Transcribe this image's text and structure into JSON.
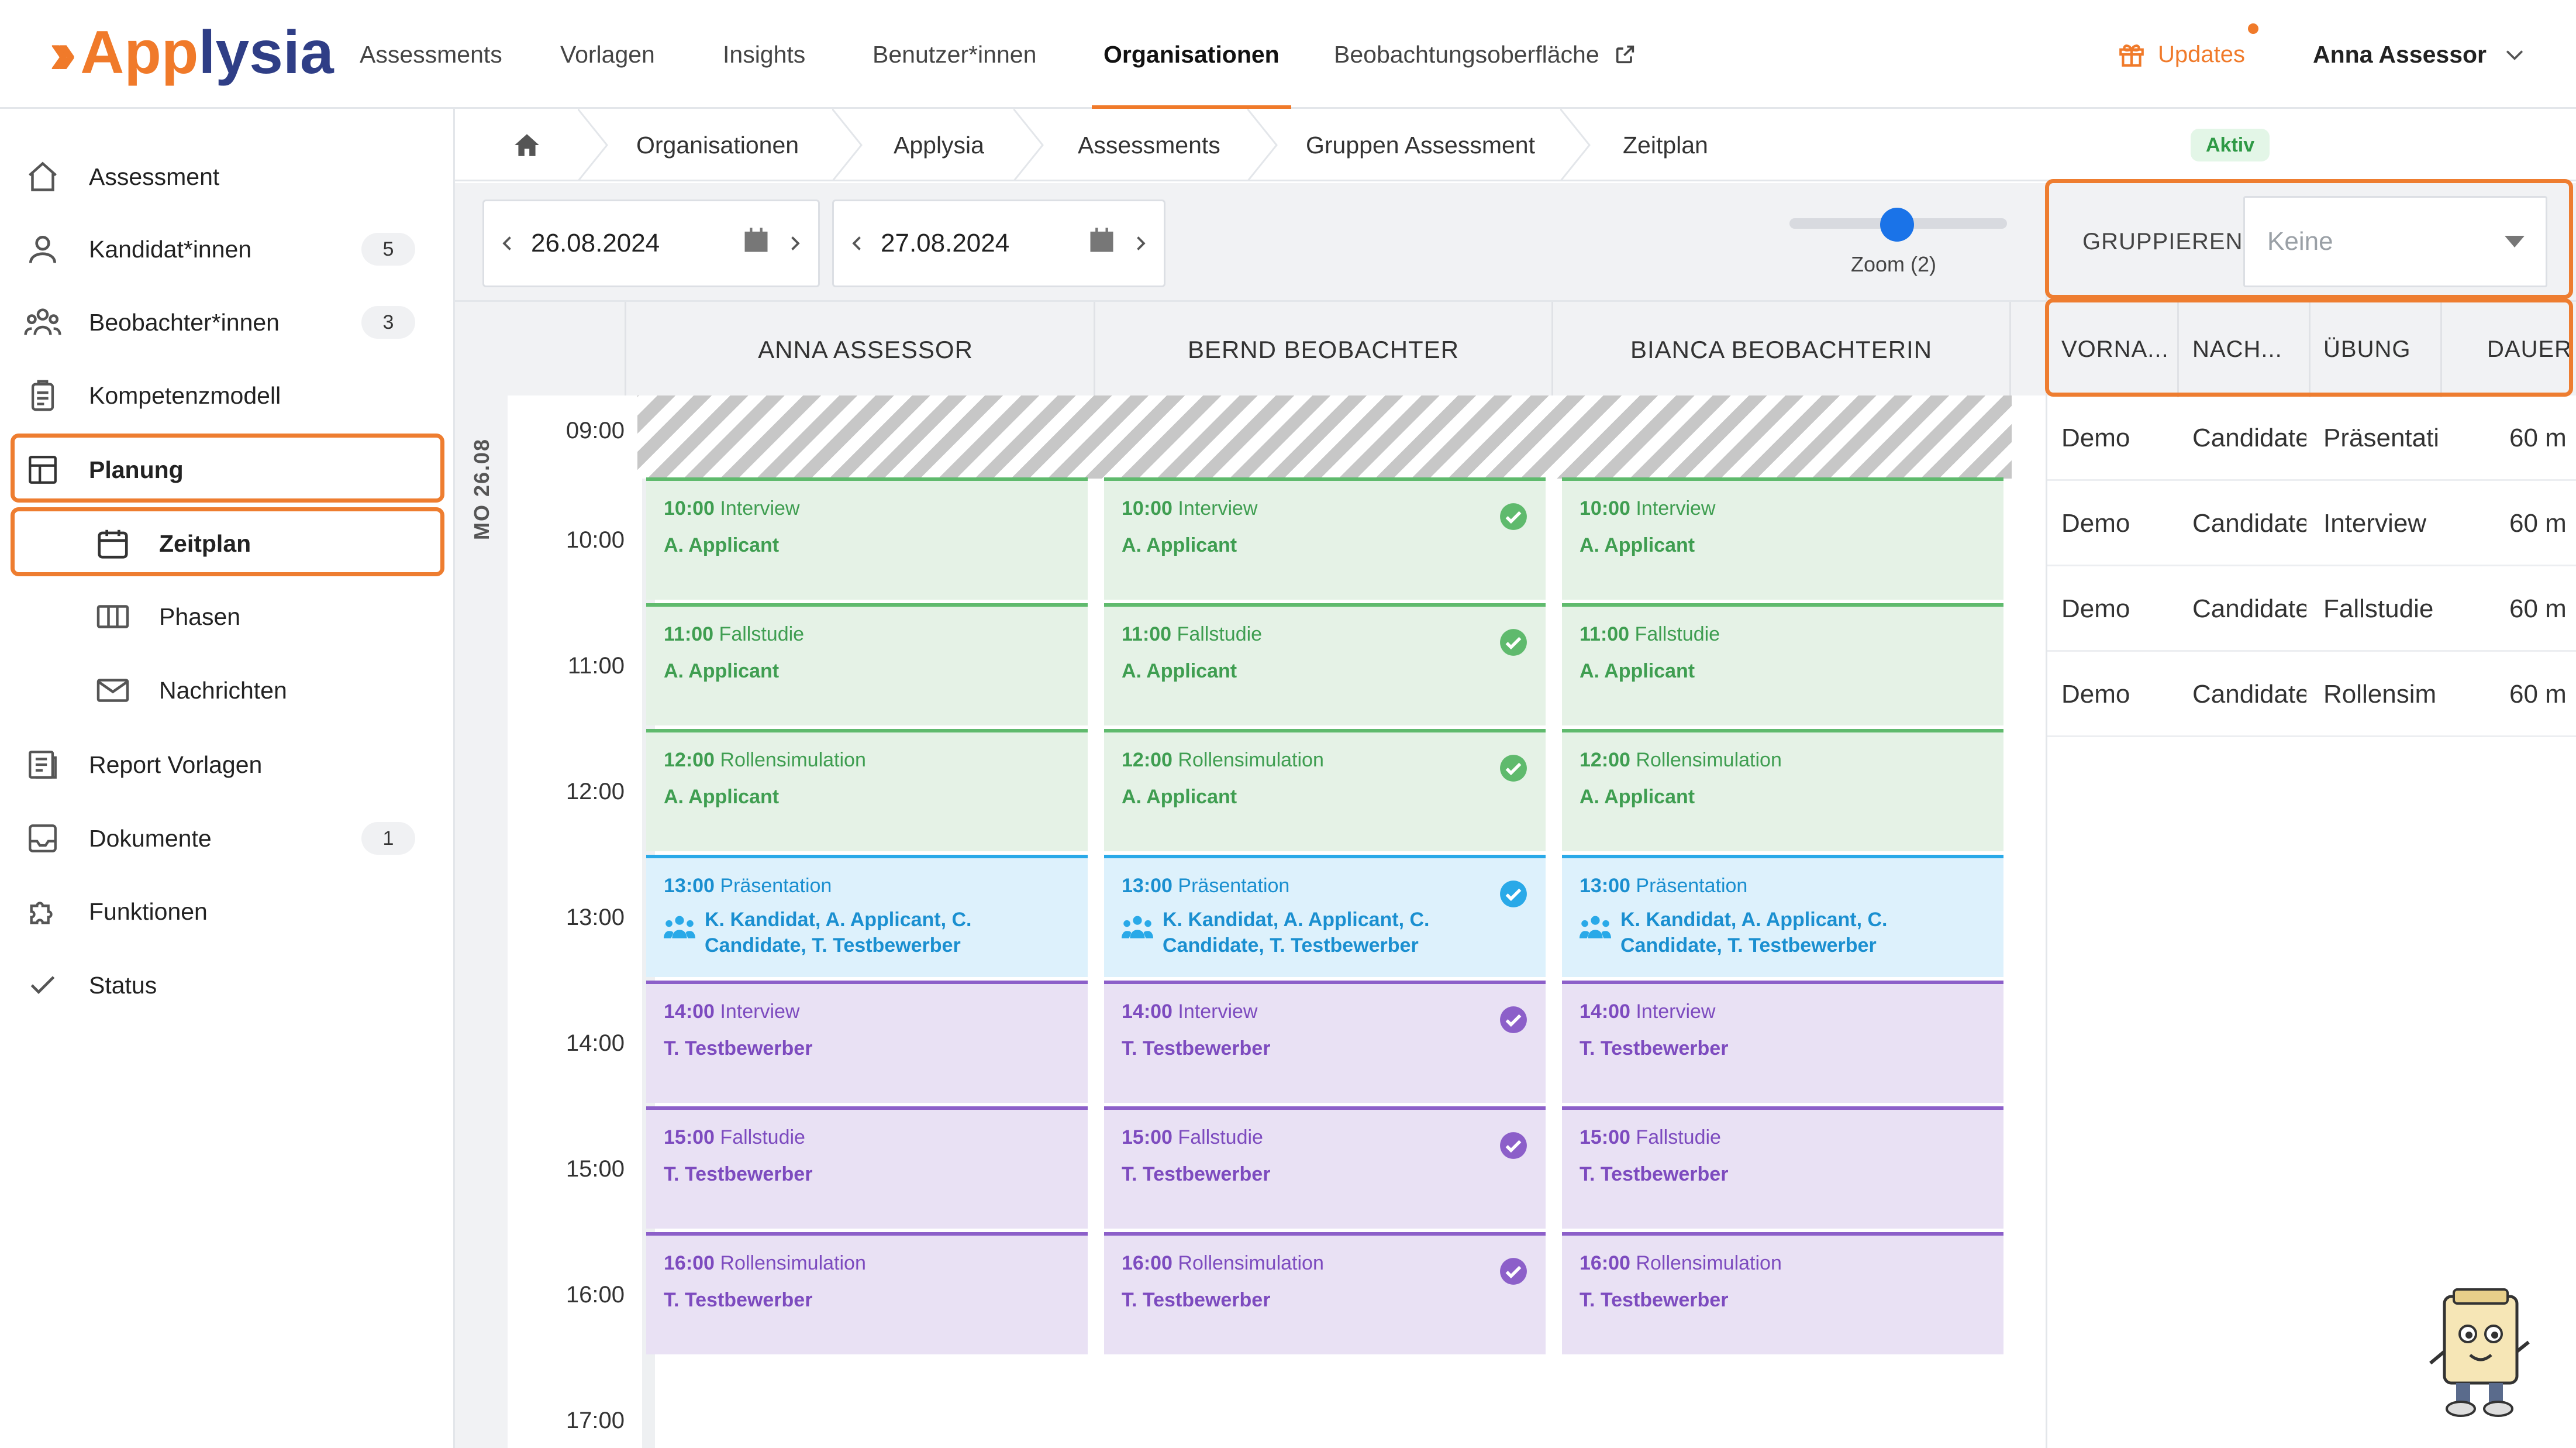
{
  "brand": {
    "logo_text_1": "App",
    "logo_text_2": "lysia",
    "orange": "#f07a2a",
    "navy": "#2f3e86"
  },
  "topnav": {
    "items": [
      "Assessments",
      "Vorlagen",
      "Insights",
      "Benutzer*innen",
      "Organisationen",
      "Beobachtungsoberfläche"
    ],
    "active": "Organisationen",
    "updates_label": "Updates",
    "user_name": "Anna Assessor"
  },
  "sidebar": {
    "items": [
      {
        "label": "Assessment",
        "icon": "home-icon"
      },
      {
        "label": "Kandidat*innen",
        "badge": "5",
        "icon": "users-icon"
      },
      {
        "label": "Beobachter*innen",
        "badge": "3",
        "icon": "observers-icon"
      },
      {
        "label": "Kompetenzmodell",
        "icon": "clipboard-icon"
      },
      {
        "label": "Planung",
        "icon": "layout-icon"
      },
      {
        "label": "Zeitplan",
        "icon": "calendar-icon"
      },
      {
        "label": "Phasen",
        "icon": "columns-icon"
      },
      {
        "label": "Nachrichten",
        "icon": "mail-icon"
      },
      {
        "label": "Report Vorlagen",
        "icon": "report-icon"
      },
      {
        "label": "Dokumente",
        "badge": "1",
        "icon": "inbox-icon"
      },
      {
        "label": "Funktionen",
        "icon": "puzzle-icon"
      },
      {
        "label": "Status",
        "icon": "check-icon"
      }
    ]
  },
  "breadcrumb": {
    "items": [
      "Organisationen",
      "Applysia",
      "Assessments",
      "Gruppen Assessment",
      "Zeitplan"
    ],
    "status": "Aktiv"
  },
  "toolbar": {
    "date_from": "26.08.2024",
    "date_to": "27.08.2024",
    "zoom_label": "Zoom (2)"
  },
  "calendar": {
    "day_label": "MO 26.08",
    "times": [
      "09:00",
      "10:00",
      "11:00",
      "12:00",
      "13:00",
      "14:00",
      "15:00",
      "16:00",
      "17:00"
    ],
    "columns": [
      {
        "name": "ANNA ASSESSOR",
        "events": [
          {
            "time": "10:00",
            "title": "Interview",
            "who": "A. Applicant",
            "check": false
          },
          {
            "time": "11:00",
            "title": "Fallstudie",
            "who": "A. Applicant",
            "check": false
          },
          {
            "time": "12:00",
            "title": "Rollensimulation",
            "who": "A. Applicant",
            "check": false
          },
          {
            "time": "13:00",
            "title": "Präsentation",
            "who": "K. Kandidat, A. Applicant, C. Candidate, T. Testbewerber",
            "check": false
          },
          {
            "time": "14:00",
            "title": "Interview",
            "who": "T. Testbewerber",
            "check": false
          },
          {
            "time": "15:00",
            "title": "Fallstudie",
            "who": "T. Testbewerber",
            "check": false
          },
          {
            "time": "16:00",
            "title": "Rollensimulation",
            "who": "T. Testbewerber",
            "check": false
          }
        ]
      },
      {
        "name": "BERND BEOBACHTER",
        "events": [
          {
            "time": "10:00",
            "title": "Interview",
            "who": "A. Applicant",
            "check": true
          },
          {
            "time": "11:00",
            "title": "Fallstudie",
            "who": "A. Applicant",
            "check": true
          },
          {
            "time": "12:00",
            "title": "Rollensimulation",
            "who": "A. Applicant",
            "check": true
          },
          {
            "time": "13:00",
            "title": "Präsentation",
            "who": "K. Kandidat, A. Applicant, C. Candidate, T. Testbewerber",
            "check": true
          },
          {
            "time": "14:00",
            "title": "Interview",
            "who": "T. Testbewerber",
            "check": true
          },
          {
            "time": "15:00",
            "title": "Fallstudie",
            "who": "T. Testbewerber",
            "check": true
          },
          {
            "time": "16:00",
            "title": "Rollensimulation",
            "who": "T. Testbewerber",
            "check": true
          }
        ]
      },
      {
        "name": "BIANCA BEOBACHTERIN",
        "events": [
          {
            "time": "10:00",
            "title": "Interview",
            "who": "A. Applicant",
            "check": false
          },
          {
            "time": "11:00",
            "title": "Fallstudie",
            "who": "A. Applicant",
            "check": false
          },
          {
            "time": "12:00",
            "title": "Rollensimulation",
            "who": "A. Applicant",
            "check": false
          },
          {
            "time": "13:00",
            "title": "Präsentation",
            "who": "K. Kandidat, A. Applicant, C. Candidate, T. Testbewerber",
            "check": false
          },
          {
            "time": "14:00",
            "title": "Interview",
            "who": "T. Testbewerber",
            "check": false
          },
          {
            "time": "15:00",
            "title": "Fallstudie",
            "who": "T. Testbewerber",
            "check": false
          },
          {
            "time": "16:00",
            "title": "Rollensimulation",
            "who": "T. Testbewerber",
            "check": false
          }
        ]
      }
    ],
    "colors": {
      "green": "#5fba6d",
      "blue": "#29a9e8",
      "purple": "#8c5fc9"
    }
  },
  "right_panel": {
    "group_label": "GRUPPIEREN",
    "group_value": "Keine",
    "columns": [
      "VORNA...",
      "NACH...",
      "ÜBUNG",
      "DAUER"
    ],
    "rows": [
      [
        "Demo",
        "Candidate",
        "Präsentati",
        "60 m"
      ],
      [
        "Demo",
        "Candidate",
        "Interview",
        "60 m"
      ],
      [
        "Demo",
        "Candidate",
        "Fallstudie",
        "60 m"
      ],
      [
        "Demo",
        "Candidate",
        "Rollensimu",
        "60 m"
      ]
    ]
  }
}
